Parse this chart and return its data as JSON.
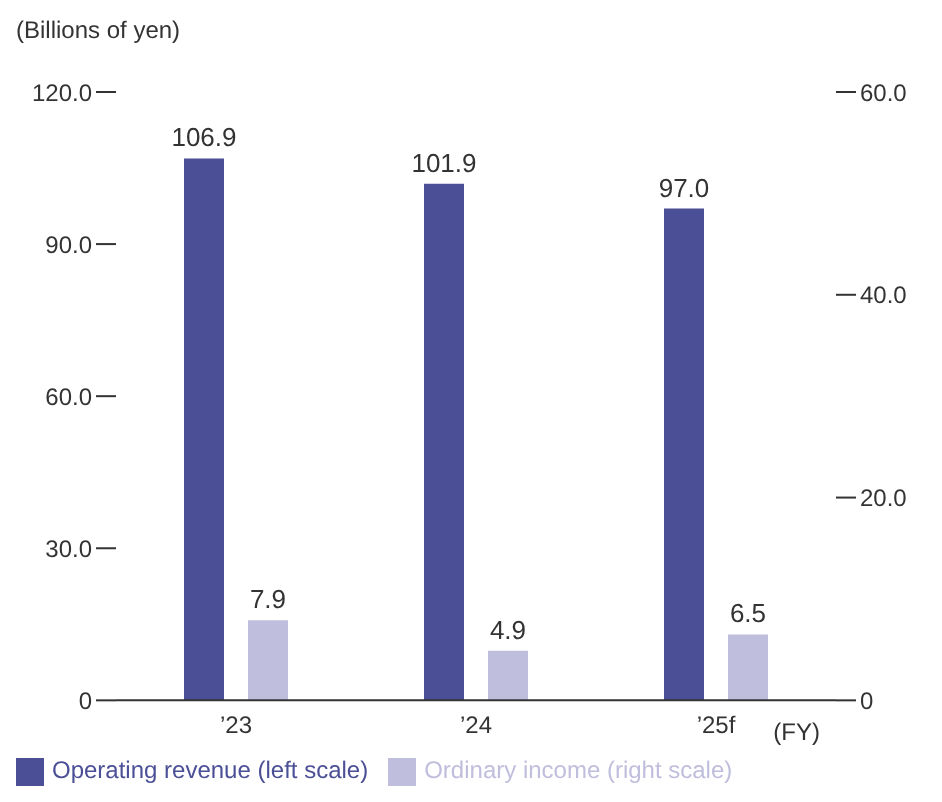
{
  "chart_data": {
    "type": "bar",
    "ylabel": "(Billions of yen)",
    "xlabel": "(FY)",
    "categories": [
      "’23",
      "’24",
      "’25f"
    ],
    "series": [
      {
        "name": "Operating revenue (left scale)",
        "color": "#4b4f96",
        "values": [
          106.9,
          101.9,
          97.0
        ],
        "value_labels": [
          "106.9",
          "101.9",
          "97.0"
        ]
      },
      {
        "name": "Ordinary income (right scale)",
        "color": "#c0bedd",
        "values": [
          7.9,
          4.9,
          6.5
        ],
        "value_labels": [
          "7.9",
          "4.9",
          "6.5"
        ],
        "axis": "y2"
      }
    ],
    "ylim": [
      0,
      120
    ],
    "yticks": [
      {
        "value": 0,
        "label": "0"
      },
      {
        "value": 30,
        "label": "30.0"
      },
      {
        "value": 60,
        "label": "60.0"
      },
      {
        "value": 90,
        "label": "90.0"
      },
      {
        "value": 120,
        "label": "120.0"
      }
    ],
    "y2lim": [
      0,
      60
    ],
    "y2ticks": [
      {
        "value": 0,
        "label": "0"
      },
      {
        "value": 20,
        "label": "20.0"
      },
      {
        "value": 40,
        "label": "40.0"
      },
      {
        "value": 60,
        "label": "60.0"
      }
    ],
    "legend": "bottom left",
    "grid": false
  }
}
